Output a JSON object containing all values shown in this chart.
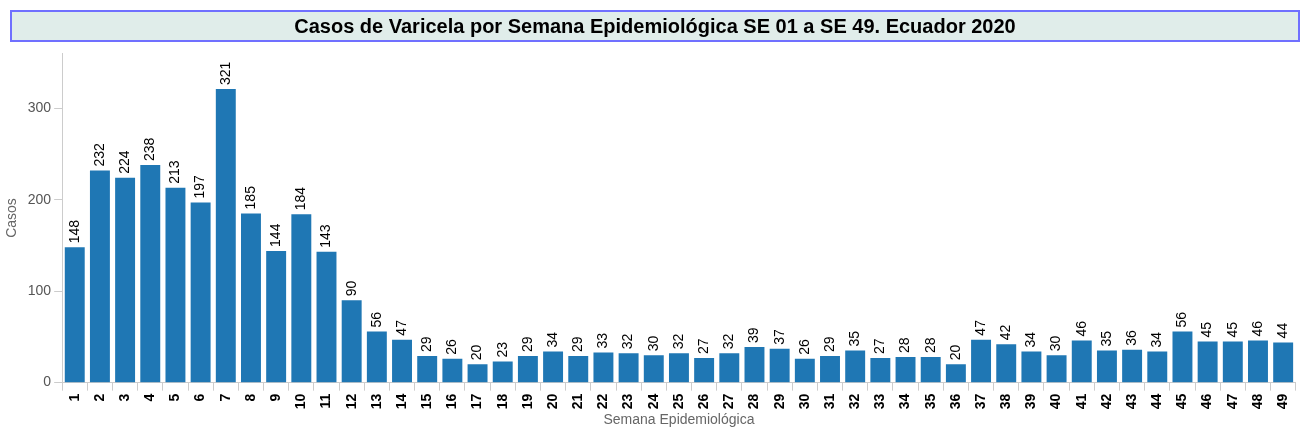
{
  "chart_data": {
    "type": "bar",
    "title": "Casos de Varicela por Semana Epidemiológica SE 01 a SE 49. Ecuador 2020",
    "xlabel": "Semana Epidemiológica",
    "ylabel": "Casos",
    "categories": [
      "1",
      "2",
      "3",
      "4",
      "5",
      "6",
      "7",
      "8",
      "9",
      "10",
      "11",
      "12",
      "13",
      "14",
      "15",
      "16",
      "17",
      "18",
      "19",
      "20",
      "21",
      "22",
      "23",
      "24",
      "25",
      "26",
      "27",
      "28",
      "29",
      "30",
      "31",
      "32",
      "33",
      "34",
      "35",
      "36",
      "37",
      "38",
      "39",
      "40",
      "41",
      "42",
      "43",
      "44",
      "45",
      "46",
      "47",
      "48",
      "49"
    ],
    "values": [
      148,
      232,
      224,
      238,
      213,
      197,
      321,
      185,
      144,
      184,
      143,
      90,
      56,
      47,
      29,
      26,
      20,
      23,
      29,
      34,
      29,
      33,
      32,
      30,
      32,
      27,
      32,
      39,
      37,
      26,
      29,
      35,
      27,
      28,
      28,
      20,
      47,
      42,
      34,
      30,
      46,
      35,
      36,
      34,
      56,
      45,
      45,
      46,
      44
    ],
    "color": "#1f77b4",
    "ylim": [
      0,
      360
    ],
    "yticks": [
      0,
      100,
      200,
      300
    ],
    "grid": false,
    "legend": false,
    "data_labels": true
  }
}
